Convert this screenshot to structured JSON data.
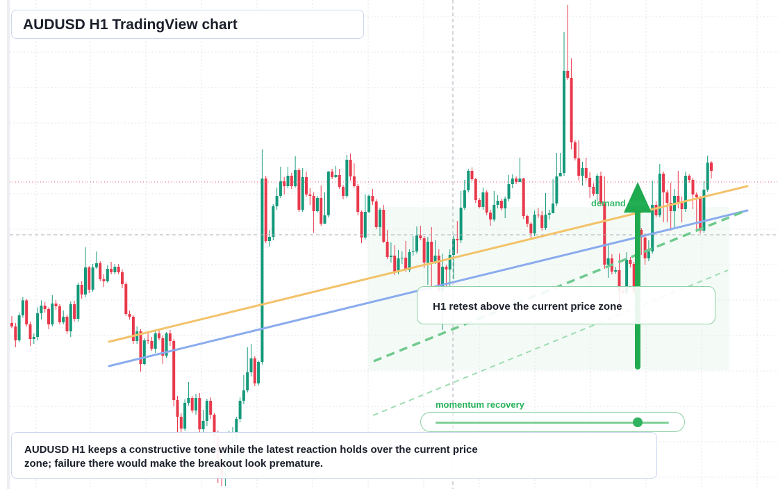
{
  "title": "AUDUSD H1 TradingView chart",
  "annotation": "H1 retest above the current price zone",
  "zone_label": "demand side",
  "momentum_label": "momentum recovery",
  "momentum_level": 0.86,
  "caption": "AUDUSD H1 keeps a constructive tone while the latest reaction holds over the current price zone; failure there would make the breakout look premature.",
  "colors": {
    "up": "#14997a",
    "down": "#e8394c",
    "orange_line": "#f3c26a",
    "blue_line": "#8aabee",
    "green": "#27b35b",
    "grid": "#e3e6ec"
  },
  "icons": [
    "up-arrow-icon"
  ],
  "chart_data": {
    "type": "candlestick",
    "symbol": "AUDUSD",
    "timeframe": "H1",
    "grid": true,
    "candles": [
      [
        47.0,
        46.0,
        49.0,
        45.5
      ],
      [
        46.0,
        42.0,
        47.0,
        40.0
      ],
      [
        42.0,
        49.2,
        50.0,
        41.5
      ],
      [
        49.2,
        53.5,
        54.5,
        48.5
      ],
      [
        53.5,
        46.6,
        54.0,
        46.0
      ],
      [
        46.6,
        42.4,
        47.4,
        40.4
      ],
      [
        42.4,
        43.0,
        44.0,
        41.0
      ],
      [
        43.0,
        49.8,
        51.5,
        42.0
      ],
      [
        49.8,
        52.0,
        53.5,
        48.0
      ],
      [
        52.0,
        51.0,
        53.0,
        50.0
      ],
      [
        51.0,
        46.6,
        51.5,
        45.2
      ],
      [
        46.6,
        52.6,
        55.0,
        46.0
      ],
      [
        52.6,
        51.8,
        53.6,
        50.8
      ],
      [
        51.8,
        47.2,
        52.4,
        46.6
      ],
      [
        47.2,
        48.8,
        50.6,
        46.6
      ],
      [
        48.8,
        44.6,
        49.4,
        43.8
      ],
      [
        44.6,
        52.4,
        53.2,
        43.0
      ],
      [
        52.4,
        48.2,
        53.4,
        47.4
      ],
      [
        48.2,
        58.0,
        58.6,
        47.4
      ],
      [
        58.0,
        55.2,
        59.0,
        54.0
      ],
      [
        55.2,
        63.0,
        68.8,
        54.4
      ],
      [
        63.0,
        56.6,
        63.4,
        55.6
      ],
      [
        56.6,
        63.0,
        64.0,
        56.0
      ],
      [
        63.0,
        64.2,
        67.6,
        62.6
      ],
      [
        64.2,
        59.6,
        64.8,
        59.0
      ],
      [
        59.6,
        59.0,
        61.0,
        57.4
      ],
      [
        59.0,
        62.6,
        63.6,
        58.6
      ],
      [
        62.6,
        61.6,
        64.6,
        61.0
      ],
      [
        61.6,
        63.2,
        64.0,
        61.0
      ],
      [
        63.2,
        61.6,
        64.0,
        61.0
      ],
      [
        61.6,
        58.2,
        62.4,
        57.0
      ],
      [
        58.2,
        49.6,
        58.8,
        49.0
      ],
      [
        49.6,
        48.8,
        50.6,
        48.0
      ],
      [
        48.8,
        41.8,
        49.2,
        41.0
      ],
      [
        41.8,
        44.6,
        46.0,
        41.0
      ],
      [
        44.6,
        35.2,
        45.2,
        33.0
      ],
      [
        35.2,
        42.0,
        42.6,
        34.8
      ],
      [
        42.0,
        41.8,
        44.0,
        41.0
      ],
      [
        41.8,
        39.6,
        43.0,
        39.0
      ],
      [
        39.6,
        44.0,
        44.6,
        38.4
      ],
      [
        44.0,
        42.6,
        45.0,
        42.0
      ],
      [
        42.6,
        37.6,
        43.4,
        35.2
      ],
      [
        37.6,
        44.0,
        44.4,
        37.0
      ],
      [
        44.0,
        41.8,
        45.0,
        40.4
      ],
      [
        41.8,
        24.8,
        42.4,
        23.0
      ],
      [
        24.8,
        20.0,
        26.0,
        14.0
      ],
      [
        20.0,
        16.6,
        21.0,
        9.0
      ],
      [
        16.6,
        24.0,
        25.0,
        16.0
      ],
      [
        24.0,
        25.4,
        30.0,
        23.2
      ],
      [
        25.4,
        21.8,
        26.0,
        21.0
      ],
      [
        21.8,
        25.4,
        26.6,
        20.6
      ],
      [
        25.4,
        16.4,
        26.8,
        15.4
      ],
      [
        16.4,
        18.8,
        22.0,
        14.8
      ],
      [
        18.8,
        24.6,
        25.2,
        17.4
      ],
      [
        24.6,
        20.6,
        25.6,
        19.4
      ],
      [
        20.6,
        14.4,
        21.0,
        12.0
      ],
      [
        14.4,
        6.8,
        16.0,
        1.0
      ],
      [
        6.8,
        3.0,
        12.0,
        0.0
      ],
      [
        3.0,
        4.0,
        10.0,
        0.0
      ],
      [
        4.0,
        12.6,
        16.0,
        3.2
      ],
      [
        12.6,
        13.6,
        17.0,
        11.0
      ],
      [
        13.6,
        19.4,
        20.0,
        12.8
      ],
      [
        19.4,
        24.6,
        25.6,
        18.4
      ],
      [
        24.6,
        27.6,
        32.0,
        23.6
      ],
      [
        27.6,
        32.8,
        40.0,
        27.0
      ],
      [
        32.8,
        36.8,
        41.0,
        31.6
      ],
      [
        36.8,
        29.6,
        37.4,
        28.8
      ],
      [
        29.6,
        35.8,
        36.2,
        29.0
      ],
      [
        35.8,
        88.6,
        97.0,
        35.0
      ],
      [
        88.6,
        70.6,
        89.4,
        70.0
      ],
      [
        70.6,
        71.8,
        73.8,
        69.0
      ],
      [
        71.8,
        80.6,
        81.2,
        70.8
      ],
      [
        80.6,
        83.6,
        86.0,
        79.6
      ],
      [
        83.6,
        87.8,
        92.0,
        83.0
      ],
      [
        87.8,
        86.4,
        89.0,
        84.0
      ],
      [
        86.4,
        89.4,
        92.0,
        85.8
      ],
      [
        89.4,
        86.4,
        90.2,
        85.6
      ],
      [
        86.4,
        91.0,
        95.0,
        86.0
      ],
      [
        91.0,
        79.6,
        91.6,
        79.0
      ],
      [
        79.6,
        89.0,
        91.6,
        79.0
      ],
      [
        89.0,
        84.0,
        90.6,
        83.4
      ],
      [
        84.0,
        83.6,
        85.8,
        81.0
      ],
      [
        83.6,
        79.2,
        84.6,
        73.0
      ],
      [
        79.2,
        83.0,
        83.6,
        78.8
      ],
      [
        83.0,
        75.6,
        86.6,
        75.0
      ],
      [
        75.6,
        78.0,
        84.6,
        76.8
      ],
      [
        78.0,
        90.6,
        90.8,
        77.4
      ],
      [
        90.6,
        89.0,
        91.4,
        88.4
      ],
      [
        89.0,
        89.6,
        92.2,
        88.8
      ],
      [
        89.6,
        86.2,
        91.4,
        85.6
      ],
      [
        86.2,
        83.6,
        86.8,
        82.6
      ],
      [
        83.6,
        94.0,
        95.4,
        83.0
      ],
      [
        94.0,
        89.2,
        95.8,
        88.0
      ],
      [
        89.2,
        86.4,
        93.0,
        86.0
      ],
      [
        86.4,
        79.0,
        87.0,
        78.0
      ],
      [
        79.0,
        71.6,
        79.4,
        70.0
      ],
      [
        71.6,
        79.0,
        84.0,
        71.0
      ],
      [
        79.0,
        83.6,
        84.0,
        78.6
      ],
      [
        83.6,
        82.0,
        85.6,
        81.0
      ],
      [
        82.0,
        74.6,
        82.6,
        74.0
      ],
      [
        74.6,
        79.6,
        80.2,
        72.0
      ],
      [
        79.6,
        70.4,
        81.0,
        70.0
      ],
      [
        70.4,
        66.0,
        73.8,
        65.4
      ],
      [
        66.0,
        66.4,
        70.2,
        64.4
      ],
      [
        66.4,
        61.6,
        69.4,
        60.8
      ],
      [
        61.6,
        65.6,
        68.0,
        61.0
      ],
      [
        65.6,
        65.8,
        67.6,
        64.0
      ],
      [
        65.8,
        62.2,
        70.6,
        61.8
      ],
      [
        62.2,
        67.4,
        68.2,
        61.6
      ],
      [
        67.4,
        67.6,
        72.0,
        66.4
      ],
      [
        67.6,
        72.2,
        74.8,
        67.0
      ],
      [
        72.2,
        71.4,
        75.0,
        70.8
      ],
      [
        71.4,
        64.4,
        72.0,
        62.8
      ],
      [
        64.4,
        70.4,
        71.8,
        58.0
      ],
      [
        70.4,
        64.6,
        74.6,
        56.4
      ],
      [
        64.6,
        66.4,
        70.8,
        64.0
      ],
      [
        66.4,
        56.4,
        68.2,
        56.0
      ],
      [
        56.4,
        63.2,
        67.0,
        45.0
      ],
      [
        63.2,
        62.4,
        63.8,
        57.0
      ],
      [
        62.4,
        66.6,
        68.2,
        56.8
      ],
      [
        66.6,
        71.2,
        72.2,
        59.6
      ],
      [
        71.2,
        70.8,
        76.4,
        67.0
      ],
      [
        70.8,
        80.2,
        85.0,
        70.0
      ],
      [
        80.2,
        85.2,
        88.2,
        79.6
      ],
      [
        85.2,
        90.8,
        91.4,
        84.6
      ],
      [
        90.8,
        88.4,
        91.8,
        87.8
      ],
      [
        88.4,
        82.4,
        88.8,
        81.6
      ],
      [
        82.4,
        80.4,
        83.0,
        80.0
      ],
      [
        80.4,
        84.6,
        86.0,
        79.6
      ],
      [
        84.6,
        78.8,
        85.2,
        78.0
      ],
      [
        78.8,
        76.8,
        79.6,
        75.0
      ],
      [
        76.8,
        81.0,
        85.0,
        76.2
      ],
      [
        81.0,
        82.2,
        83.8,
        80.0
      ],
      [
        82.2,
        80.0,
        82.8,
        79.4
      ],
      [
        80.0,
        82.8,
        83.4,
        77.2
      ],
      [
        82.8,
        87.0,
        89.6,
        82.0
      ],
      [
        87.0,
        88.6,
        89.8,
        85.8
      ],
      [
        88.6,
        87.6,
        89.2,
        87.0
      ],
      [
        87.6,
        88.6,
        94.6,
        88.0
      ],
      [
        88.6,
        77.8,
        88.8,
        77.0
      ],
      [
        77.8,
        75.6,
        78.2,
        74.6
      ],
      [
        75.6,
        72.8,
        76.0,
        71.2
      ],
      [
        72.8,
        78.2,
        79.4,
        72.0
      ],
      [
        78.2,
        78.0,
        80.0,
        77.2
      ],
      [
        78.0,
        74.4,
        79.2,
        73.6
      ],
      [
        74.4,
        78.2,
        84.4,
        73.8
      ],
      [
        78.2,
        78.6,
        79.6,
        76.8
      ],
      [
        78.6,
        81.4,
        88.4,
        81.0
      ],
      [
        81.4,
        89.2,
        96.0,
        80.6
      ],
      [
        89.2,
        90.2,
        96.0,
        89.6
      ],
      [
        90.2,
        119.6,
        130.8,
        89.4
      ],
      [
        119.6,
        117.6,
        138.6,
        117.0
      ],
      [
        117.6,
        99.0,
        123.2,
        97.0
      ],
      [
        99.0,
        94.4,
        99.6,
        93.8
      ],
      [
        94.4,
        89.4,
        99.6,
        88.0
      ],
      [
        89.4,
        91.6,
        93.4,
        86.6
      ],
      [
        91.6,
        88.8,
        94.6,
        88.0
      ],
      [
        88.8,
        86.2,
        90.4,
        83.0
      ],
      [
        86.2,
        84.2,
        87.2,
        83.6
      ],
      [
        84.2,
        89.4,
        90.0,
        82.0
      ],
      [
        89.4,
        81.4,
        90.6,
        80.8
      ],
      [
        81.4,
        63.8,
        89.2,
        62.6
      ],
      [
        63.8,
        65.6,
        69.8,
        60.0
      ],
      [
        65.6,
        61.8,
        66.8,
        61.0
      ],
      [
        61.8,
        62.2,
        63.2,
        61.2
      ],
      [
        62.2,
        56.2,
        67.0,
        50.2
      ],
      [
        56.2,
        55.8,
        57.2,
        55.2
      ],
      [
        55.8,
        65.2,
        67.4,
        55.0
      ],
      [
        65.2,
        64.0,
        66.0,
        63.0
      ],
      [
        64.0,
        56.0,
        64.6,
        55.4
      ],
      [
        56.0,
        73.8,
        82.6,
        54.0
      ],
      [
        73.8,
        71.6,
        74.4,
        66.6
      ],
      [
        71.6,
        65.6,
        72.8,
        63.8
      ],
      [
        65.6,
        67.6,
        70.8,
        64.8
      ],
      [
        67.6,
        81.0,
        88.0,
        67.0
      ],
      [
        81.0,
        78.0,
        82.0,
        77.4
      ],
      [
        78.0,
        90.0,
        92.8,
        77.4
      ],
      [
        90.0,
        84.6,
        90.6,
        76.0
      ],
      [
        84.6,
        81.6,
        85.4,
        76.0
      ],
      [
        81.6,
        79.2,
        87.4,
        73.6
      ],
      [
        79.2,
        83.6,
        85.6,
        74.6
      ],
      [
        83.6,
        81.6,
        90.8,
        80.0
      ],
      [
        81.6,
        79.8,
        83.4,
        76.0
      ],
      [
        79.8,
        89.4,
        90.6,
        79.0
      ],
      [
        89.4,
        88.2,
        89.8,
        87.4
      ],
      [
        88.2,
        84.0,
        88.8,
        79.8
      ],
      [
        84.0,
        83.2,
        84.6,
        73.8
      ],
      [
        83.2,
        73.6,
        83.6,
        72.8
      ],
      [
        73.6,
        85.4,
        87.8,
        73.0
      ],
      [
        85.4,
        93.2,
        95.2,
        84.8
      ],
      [
        93.2,
        90.8,
        93.6,
        88.6
      ]
    ],
    "annotations": [
      "AUDUSD H1 TradingView chart",
      "H1 retest above the current price zone",
      "demand side",
      "momentum recovery"
    ]
  }
}
